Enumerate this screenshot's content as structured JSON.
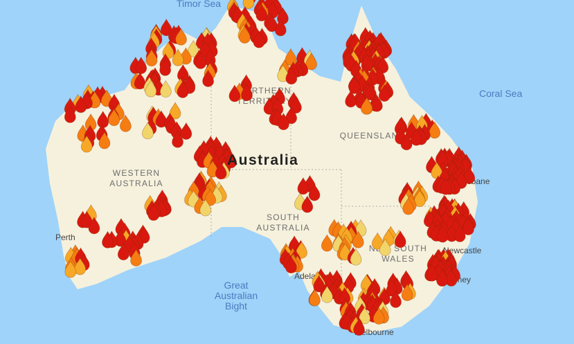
{
  "map": {
    "colors": {
      "ocean": "#9fd3f9",
      "land": "#f6f1dd",
      "fire_high": "#d9190f",
      "fire_medium": "#f57d12",
      "fire_low": "#f7a826",
      "fire_minor": "#f1d56b"
    },
    "water_labels": {
      "timor_sea": "Timor Sea",
      "coral_sea": "Coral Sea",
      "bight_line1": "Great",
      "bight_line2": "Australian",
      "bight_line3": "Bight"
    },
    "country_label": "Australia",
    "region_labels": {
      "nt_line1": "NORTHERN",
      "nt_line2": "TERRITORY",
      "qld": "QUEENSLAND",
      "wa_line1": "WESTERN",
      "wa_line2": "AUSTRALIA",
      "sa_line1": "SOUTH",
      "sa_line2": "AUSTRALIA",
      "nsw_line1": "NEW SOUTH",
      "nsw_line2": "WALES"
    },
    "city_labels": {
      "perth": "Perth",
      "brisbane": "Brisbane",
      "newcastle": "Newcastle",
      "sydney": "Sydney",
      "adelaide": "Adelaide",
      "melbourne": "Melbourne"
    },
    "marker_icon": "fire-marker-icon"
  }
}
